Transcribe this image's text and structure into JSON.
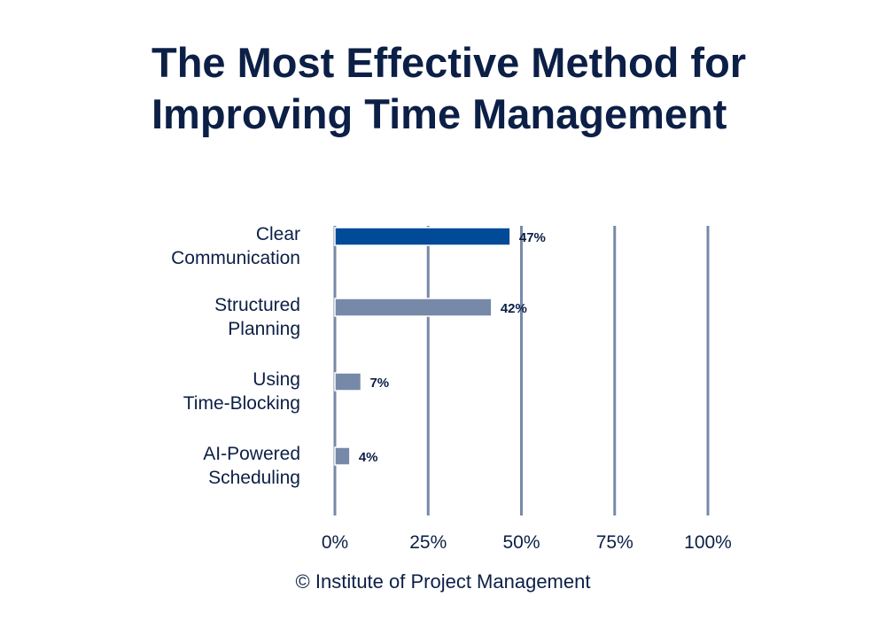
{
  "chart_data": {
    "type": "bar",
    "orientation": "horizontal",
    "title": "The Most Effective Method for Improving Time Management",
    "categories": [
      [
        "Clear",
        "Communication"
      ],
      [
        "Structured",
        "Planning"
      ],
      [
        "Using",
        "Time-Blocking"
      ],
      [
        "AI-Powered",
        "Scheduling"
      ]
    ],
    "values": [
      47,
      42,
      7,
      4
    ],
    "data_labels": [
      "47%",
      "42%",
      "7%",
      "4%"
    ],
    "xlim": [
      0,
      100
    ],
    "x_ticks": [
      0,
      25,
      50,
      75,
      100
    ],
    "x_tick_labels": [
      "0%",
      "25%",
      "50%",
      "75%",
      "100%"
    ],
    "grid": true,
    "xlabel": "",
    "ylabel": "",
    "colors": {
      "highlight": "#004a97",
      "default": "#7789a8",
      "grid": "#7789a8",
      "text": "#0c1f46"
    }
  },
  "credit": "© Institute of Project Management"
}
